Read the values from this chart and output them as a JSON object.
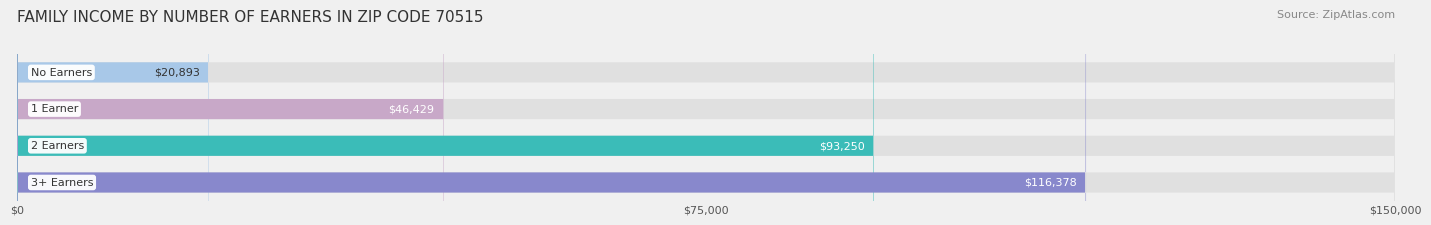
{
  "title": "FAMILY INCOME BY NUMBER OF EARNERS IN ZIP CODE 70515",
  "source": "Source: ZipAtlas.com",
  "categories": [
    "No Earners",
    "1 Earner",
    "2 Earners",
    "3+ Earners"
  ],
  "values": [
    20893,
    46429,
    93250,
    116378
  ],
  "value_labels": [
    "$20,893",
    "$46,429",
    "$93,250",
    "$116,378"
  ],
  "bar_colors": [
    "#a8c8e8",
    "#c8a8c8",
    "#3bbcb8",
    "#8888cc"
  ],
  "bar_colors_dark": [
    "#88aad0",
    "#b090b8",
    "#2aa8a4",
    "#7070bb"
  ],
  "background_color": "#f0f0f0",
  "bar_bg_color": "#e0e0e0",
  "xlim": [
    0,
    150000
  ],
  "xtick_values": [
    0,
    75000,
    150000
  ],
  "xtick_labels": [
    "$0",
    "$75,000",
    "$150,000"
  ],
  "title_fontsize": 11,
  "source_fontsize": 8,
  "label_fontsize": 8,
  "value_fontsize": 8,
  "tick_fontsize": 8,
  "bar_height": 0.55,
  "figure_width": 14.06,
  "figure_height": 2.33
}
